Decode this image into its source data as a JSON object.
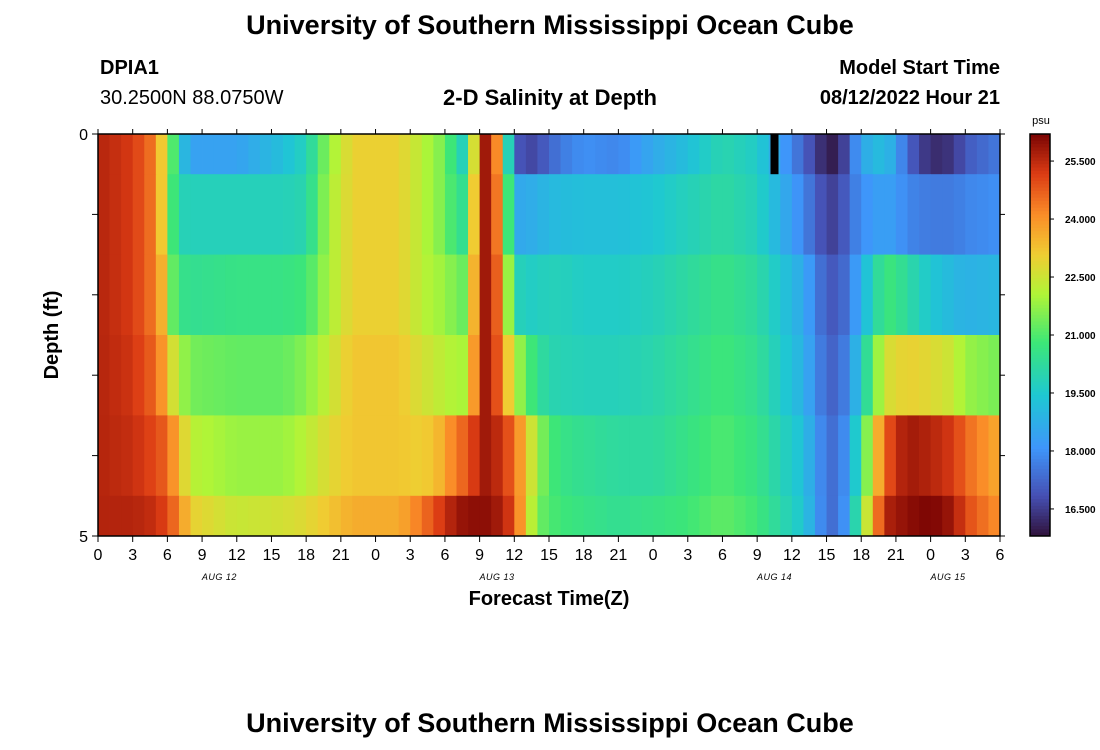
{
  "title": "University of Southern Mississippi Ocean Cube",
  "station": {
    "id": "DPIA1",
    "coords": "30.2500N  88.0750W"
  },
  "plot_title": "2-D Salinity at Depth",
  "model_start": {
    "label": "Model Start Time",
    "value": "08/12/2022 Hour 21"
  },
  "footer_title": "University of Southern Mississippi Ocean Cube",
  "chart_data": {
    "type": "heatmap",
    "title": "2-D Salinity at Depth",
    "xlabel": "Forecast Time(Z)",
    "ylabel": "Depth (ft)",
    "colorbar_unit": "psu",
    "vmin": 15.8,
    "vmax": 26.2,
    "colorbar_ticks": [
      "16.500",
      "18.000",
      "19.500",
      "21.000",
      "22.500",
      "24.000",
      "25.500"
    ],
    "colorbar_tick_values": [
      16.5,
      18.0,
      19.5,
      21.0,
      22.5,
      24.0,
      25.5
    ],
    "y_ticks": [
      "0",
      "5"
    ],
    "y_range": [
      0,
      5
    ],
    "x_tick_labels": [
      "0",
      "3",
      "6",
      "9",
      "12",
      "15",
      "18",
      "21",
      "0",
      "3",
      "6",
      "9",
      "12",
      "15",
      "18",
      "21",
      "0",
      "3",
      "6",
      "9",
      "12",
      "15",
      "18",
      "21",
      "0",
      "3",
      "6"
    ],
    "date_labels": [
      {
        "label": "AUG 12",
        "tick_index": 3.5
      },
      {
        "label": "AUG 13",
        "tick_index": 11.5
      },
      {
        "label": "AUG 14",
        "tick_index": 19.5
      },
      {
        "label": "AUG 15",
        "tick_index": 24.5
      }
    ],
    "time_range_hours": [
      0,
      78
    ],
    "depth_layers": [
      "0.0-0.5",
      "0.5-1.5",
      "1.5-2.5",
      "2.5-3.5",
      "3.5-4.5",
      "4.5-5.0"
    ],
    "keyframe_hours": [
      0,
      3,
      5,
      6,
      6.5,
      7,
      8,
      12,
      16,
      18,
      20,
      22,
      26,
      28,
      30,
      31,
      32,
      33,
      34,
      35,
      36,
      37,
      38,
      39,
      40,
      42,
      45,
      48,
      51,
      54,
      57,
      61,
      63,
      64,
      65,
      66,
      68,
      69,
      70,
      72,
      74,
      75,
      78
    ],
    "layers": [
      [
        25.6,
        25.2,
        24.3,
        22.0,
        21.0,
        19.5,
        18.4,
        18.4,
        19.2,
        19.8,
        21.8,
        23.0,
        23.0,
        22.2,
        21.4,
        20.2,
        19.5,
        25.8,
        25.8,
        22.5,
        17.2,
        16.6,
        16.8,
        17.2,
        17.6,
        18.0,
        17.8,
        18.6,
        19.2,
        20.0,
        19.6,
        17.2,
        16.0,
        16.0,
        17.2,
        18.6,
        19.2,
        18.4,
        17.2,
        16.2,
        16.4,
        17.0,
        17.6
      ],
      [
        25.6,
        25.2,
        24.3,
        22.0,
        20.8,
        19.9,
        19.8,
        19.8,
        19.8,
        20.0,
        22.0,
        23.0,
        23.0,
        22.2,
        21.4,
        20.5,
        20.4,
        25.8,
        25.8,
        23.0,
        18.6,
        18.6,
        18.8,
        19.0,
        19.1,
        19.2,
        19.2,
        19.4,
        19.8,
        20.2,
        19.8,
        17.8,
        16.6,
        16.6,
        17.4,
        18.0,
        18.4,
        18.2,
        17.8,
        17.6,
        17.6,
        17.8,
        18.0
      ],
      [
        25.6,
        25.2,
        24.3,
        22.8,
        21.2,
        20.6,
        20.4,
        20.6,
        20.6,
        20.8,
        22.0,
        23.0,
        23.0,
        22.2,
        21.8,
        21.4,
        21.2,
        25.8,
        25.8,
        23.6,
        20.0,
        19.6,
        19.7,
        19.8,
        19.8,
        19.6,
        19.6,
        19.8,
        20.2,
        20.6,
        20.2,
        18.6,
        17.0,
        17.0,
        17.6,
        18.8,
        20.8,
        20.6,
        20.2,
        19.4,
        19.0,
        18.8,
        19.0
      ],
      [
        25.6,
        25.3,
        24.6,
        23.4,
        22.6,
        22.0,
        21.4,
        21.2,
        21.2,
        21.6,
        22.4,
        23.2,
        23.2,
        22.6,
        22.2,
        22.0,
        22.0,
        25.8,
        25.8,
        24.0,
        22.2,
        21.2,
        20.4,
        20.0,
        19.9,
        19.8,
        19.8,
        20.0,
        20.4,
        20.8,
        20.4,
        18.8,
        17.2,
        17.2,
        18.0,
        19.6,
        22.6,
        22.8,
        23.0,
        22.8,
        22.4,
        21.8,
        21.4
      ],
      [
        25.6,
        25.4,
        25.0,
        24.6,
        24.0,
        23.4,
        22.2,
        21.8,
        21.8,
        22.2,
        22.8,
        23.2,
        23.2,
        23.0,
        23.6,
        24.6,
        24.6,
        25.8,
        25.8,
        25.2,
        24.6,
        23.2,
        21.8,
        21.0,
        20.6,
        20.4,
        20.2,
        20.2,
        20.6,
        21.0,
        20.6,
        19.2,
        17.4,
        17.4,
        18.4,
        20.6,
        24.6,
        25.4,
        25.8,
        25.6,
        25.2,
        24.6,
        23.6
      ],
      [
        25.6,
        25.6,
        25.4,
        25.0,
        24.6,
        24.2,
        23.0,
        22.4,
        22.6,
        22.8,
        23.2,
        23.6,
        23.6,
        24.4,
        25.4,
        25.8,
        26.0,
        26.0,
        26.0,
        25.6,
        25.0,
        23.0,
        21.4,
        21.0,
        20.8,
        20.6,
        20.4,
        20.6,
        20.8,
        21.2,
        20.8,
        19.4,
        17.4,
        17.4,
        18.6,
        21.4,
        25.6,
        25.8,
        26.0,
        26.2,
        25.8,
        25.0,
        24.0
      ]
    ],
    "missing_cell": {
      "hour": 58.5,
      "layer": 0
    }
  }
}
